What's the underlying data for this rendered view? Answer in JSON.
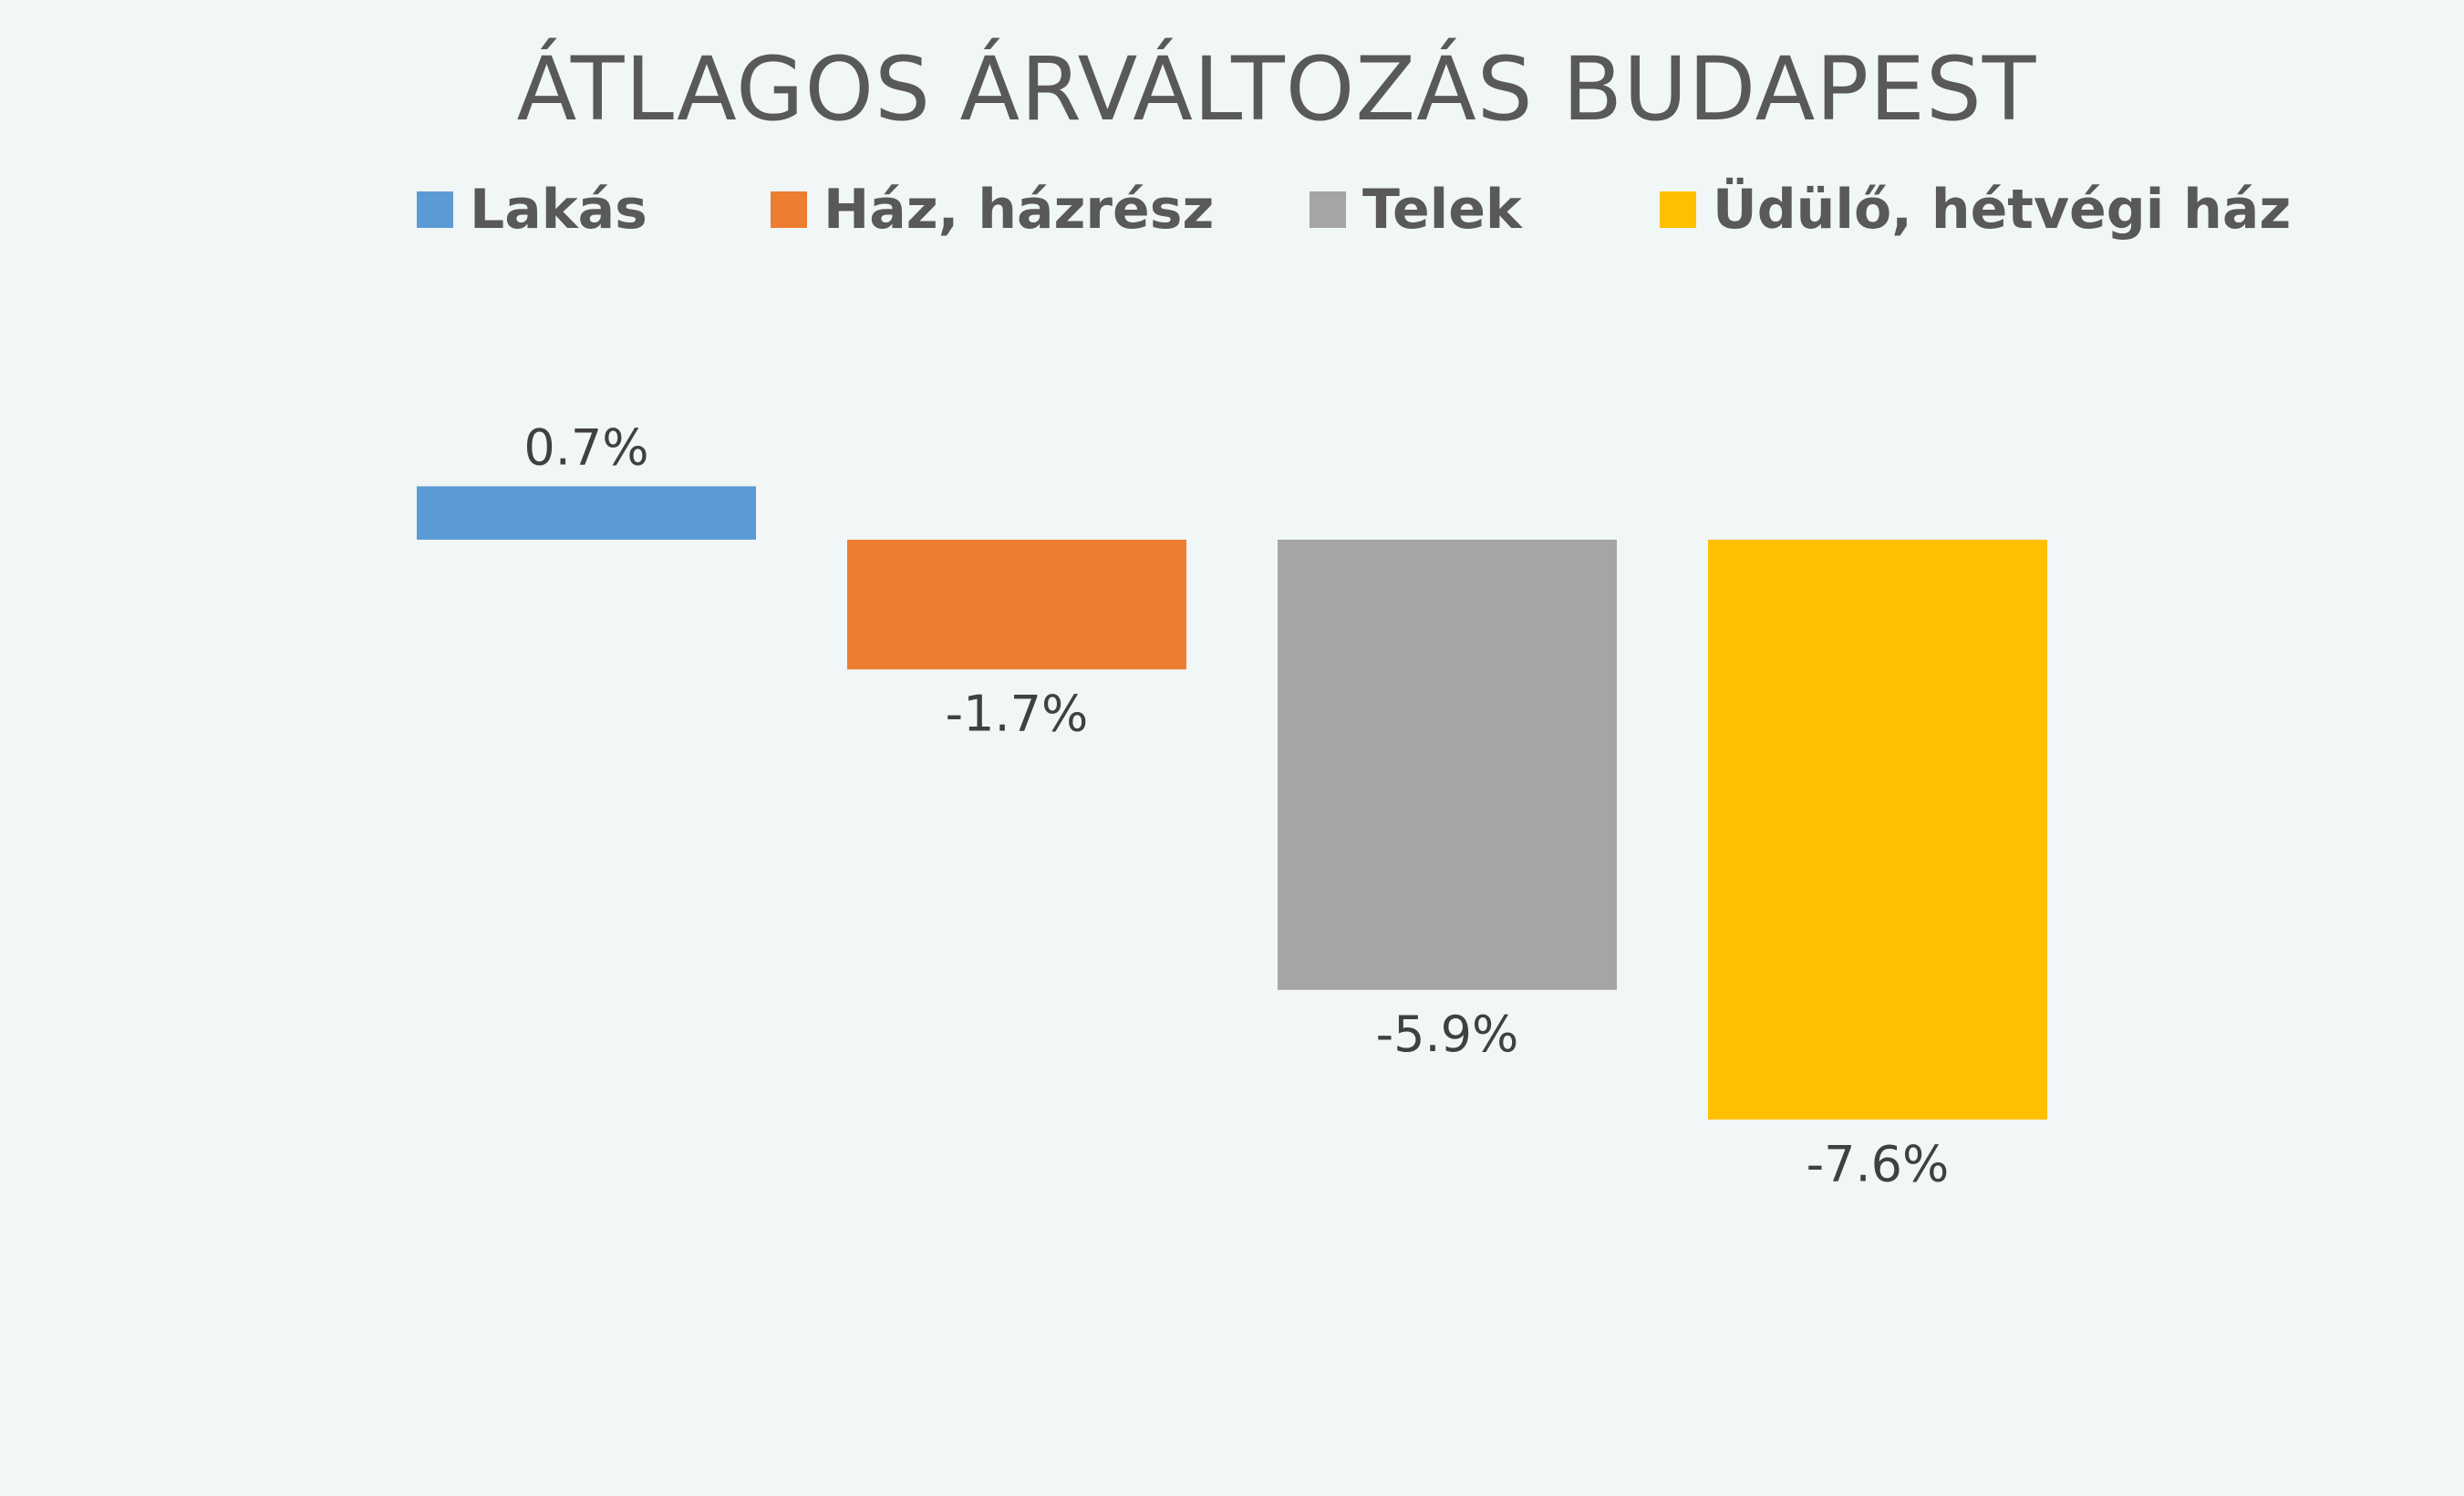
{
  "chart_data": {
    "type": "bar",
    "title": "ÁTLAGOS ÁRVÁLTOZÁS BUDAPEST",
    "legend_position": "top",
    "grid": false,
    "ylim": [
      -7.6,
      0.7
    ],
    "series": [
      {
        "name": "Lakás",
        "value": 0.7,
        "label": "0.7%",
        "color": "#5b9bd5"
      },
      {
        "name": "Ház, házrész",
        "value": -1.7,
        "label": "-1.7%",
        "color": "#ed7d31"
      },
      {
        "name": "Telek",
        "value": -5.9,
        "label": "-5.9%",
        "color": "#a5a5a5"
      },
      {
        "name": "Üdülő, hétvégi ház",
        "value": -7.6,
        "label": "-7.6%",
        "color": "#ffc000"
      }
    ]
  }
}
